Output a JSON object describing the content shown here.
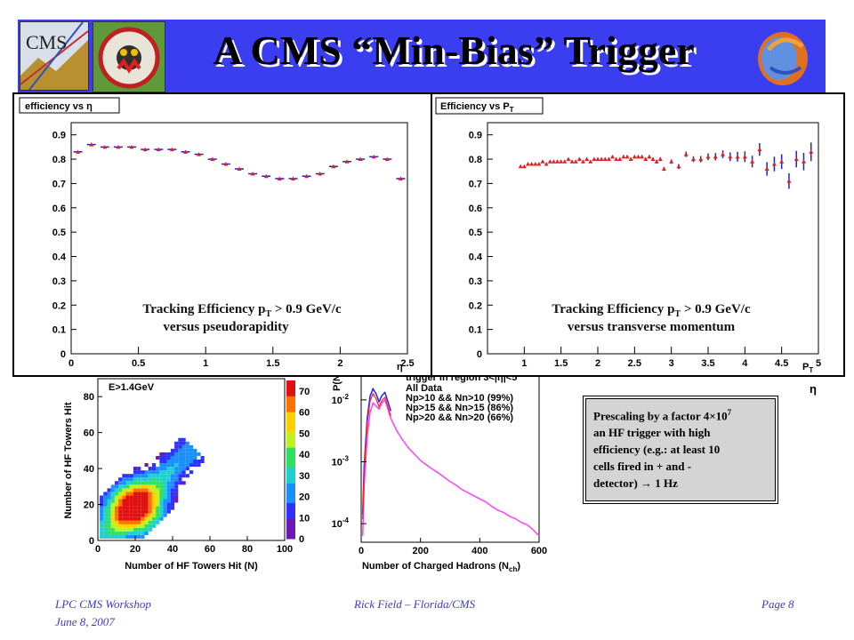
{
  "slide": {
    "title": "A CMS “Min-Bias” Trigger",
    "footer_left_1": "LPC CMS Workshop",
    "footer_left_2": "June 8, 2007",
    "footer_center": "Rick Field – Florida/CMS",
    "footer_right": "Page 8",
    "logos": {
      "cms_text": "CMS"
    },
    "colors": {
      "title_bar": "#3a3df0",
      "marker_red": "#e02020",
      "marker_blue": "#2020d0",
      "magenta": "#ff40ff"
    }
  },
  "prescale_note": {
    "line1": "Prescaling by a factor 4×10",
    "exponent": "7",
    "line2": "an HF trigger with high",
    "line3": "efficiency (e.g.: at least 10",
    "line4": "cells fired in + and -",
    "line5": "detector) → 1 Hz"
  },
  "behind_eta_label": "η",
  "chart_data": [
    {
      "type": "scatter",
      "title": "efficiency vs η",
      "xlabel": "η",
      "ylabel": "",
      "xlim": [
        0,
        2.5
      ],
      "ylim": [
        0,
        0.95
      ],
      "xticks": [
        "0",
        "0.5",
        "1",
        "1.5",
        "2",
        "2.5"
      ],
      "yticks": [
        "0",
        "0.1",
        "0.2",
        "0.3",
        "0.4",
        "0.5",
        "0.6",
        "0.7",
        "0.8",
        "0.9"
      ],
      "caption_line1": "Tracking Efficiency p",
      "caption_sub": "T",
      "caption_rest": " > 0.9 GeV/c",
      "caption_line2": "versus pseudorapidity",
      "x": [
        0.05,
        0.15,
        0.25,
        0.35,
        0.45,
        0.55,
        0.65,
        0.75,
        0.85,
        0.95,
        1.05,
        1.15,
        1.25,
        1.35,
        1.45,
        1.55,
        1.65,
        1.75,
        1.85,
        1.95,
        2.05,
        2.15,
        2.25,
        2.35,
        2.45
      ],
      "y": [
        0.83,
        0.86,
        0.85,
        0.85,
        0.85,
        0.84,
        0.84,
        0.84,
        0.83,
        0.82,
        0.8,
        0.78,
        0.76,
        0.74,
        0.73,
        0.72,
        0.72,
        0.73,
        0.74,
        0.77,
        0.79,
        0.8,
        0.81,
        0.8,
        0.72
      ]
    },
    {
      "type": "scatter",
      "title": "Efficiency vs P",
      "title_sub": "T",
      "xlabel": "P",
      "xlabel_sub": "T",
      "ylabel": "",
      "xlim": [
        0.5,
        5
      ],
      "ylim": [
        0,
        0.95
      ],
      "xticks": [
        "1",
        "1.5",
        "2",
        "2.5",
        "3",
        "3.5",
        "4",
        "4.5",
        "5"
      ],
      "yticks": [
        "0",
        "0.1",
        "0.2",
        "0.3",
        "0.4",
        "0.5",
        "0.6",
        "0.7",
        "0.8",
        "0.9"
      ],
      "caption_line1": "Tracking Efficiency p",
      "caption_sub": "T",
      "caption_rest": " > 0.9 GeV/c",
      "caption_line2": "versus transverse momentum",
      "x": [
        0.95,
        1.0,
        1.05,
        1.1,
        1.15,
        1.2,
        1.25,
        1.3,
        1.35,
        1.4,
        1.45,
        1.5,
        1.55,
        1.6,
        1.65,
        1.7,
        1.75,
        1.8,
        1.85,
        1.9,
        1.95,
        2.0,
        2.05,
        2.1,
        2.15,
        2.2,
        2.25,
        2.3,
        2.35,
        2.4,
        2.45,
        2.5,
        2.55,
        2.6,
        2.65,
        2.7,
        2.75,
        2.8,
        2.85,
        2.9,
        3.0,
        3.1,
        3.2,
        3.3,
        3.4,
        3.5,
        3.6,
        3.7,
        3.8,
        3.9,
        4.0,
        4.1,
        4.2,
        4.3,
        4.4,
        4.5,
        4.6,
        4.7,
        4.8,
        4.9
      ],
      "y": [
        0.77,
        0.77,
        0.78,
        0.78,
        0.78,
        0.78,
        0.79,
        0.78,
        0.79,
        0.79,
        0.79,
        0.79,
        0.79,
        0.8,
        0.79,
        0.79,
        0.8,
        0.79,
        0.8,
        0.79,
        0.8,
        0.8,
        0.8,
        0.8,
        0.8,
        0.81,
        0.8,
        0.8,
        0.81,
        0.81,
        0.8,
        0.81,
        0.81,
        0.81,
        0.8,
        0.81,
        0.8,
        0.79,
        0.8,
        0.76,
        0.79,
        0.77,
        0.82,
        0.8,
        0.8,
        0.81,
        0.81,
        0.82,
        0.81,
        0.81,
        0.81,
        0.79,
        0.84,
        0.76,
        0.78,
        0.79,
        0.71,
        0.8,
        0.79,
        0.83
      ],
      "yerr": [
        0.004,
        0.004,
        0.004,
        0.004,
        0.004,
        0.004,
        0.004,
        0.004,
        0.004,
        0.004,
        0.004,
        0.004,
        0.004,
        0.004,
        0.004,
        0.004,
        0.004,
        0.004,
        0.004,
        0.004,
        0.005,
        0.005,
        0.005,
        0.005,
        0.005,
        0.005,
        0.005,
        0.005,
        0.006,
        0.006,
        0.006,
        0.006,
        0.006,
        0.007,
        0.007,
        0.007,
        0.007,
        0.008,
        0.008,
        0.008,
        0.009,
        0.01,
        0.011,
        0.012,
        0.013,
        0.014,
        0.015,
        0.016,
        0.018,
        0.02,
        0.022,
        0.024,
        0.026,
        0.028,
        0.03,
        0.03,
        0.032,
        0.034,
        0.036,
        0.038
      ]
    },
    {
      "type": "heatmap",
      "title": "",
      "legend_text": "E>1.4GeV",
      "xlabel": "Number of HF Towers Hit (N)",
      "ylabel": "Number of HF Towers Hit",
      "xlim": [
        0,
        100
      ],
      "ylim": [
        0,
        90
      ],
      "xticks": [
        "0",
        "20",
        "40",
        "60",
        "80",
        "100"
      ],
      "yticks": [
        "0",
        "20",
        "40",
        "60",
        "80"
      ],
      "colorbar_ticks": [
        "0",
        "10",
        "20",
        "30",
        "40",
        "50",
        "60",
        "70"
      ],
      "peak": {
        "x": 20,
        "y": 18
      },
      "spread_max": {
        "x": 52,
        "y": 52
      }
    },
    {
      "type": "line",
      "title": "",
      "legend_header": "trigger in region 3<|η|<5",
      "xlabel": "Number of Charged Hadrons (N",
      "xlabel_sub": "ch",
      "xlabel_tail": ")",
      "ylabel": "P(N",
      "xlim": [
        0,
        600
      ],
      "ylim_log": [
        -4.3,
        -1.6
      ],
      "xticks": [
        "0",
        "200",
        "400",
        "600"
      ],
      "yticks": [
        "10",
        "10",
        "10"
      ],
      "ytick_exp": [
        "-2",
        "-3",
        "-4"
      ],
      "series": [
        {
          "name": "All Data",
          "color": "#000000"
        },
        {
          "name": "Np>10 && Nn>10 (99%)",
          "color": "#2020ff"
        },
        {
          "name": "Np>15 && Nn>15 (86%)",
          "color": "#ff2020"
        },
        {
          "name": "Np>20 && Nn>20 (66%)",
          "color": "#ff40ff"
        }
      ],
      "x": [
        5,
        10,
        20,
        30,
        40,
        50,
        60,
        70,
        80,
        90,
        100,
        120,
        140,
        160,
        180,
        200,
        220,
        240,
        260,
        280,
        300,
        320,
        340,
        360,
        380,
        400,
        420,
        440,
        460,
        480,
        500,
        520,
        540,
        560,
        580,
        600
      ],
      "magenta_log": [
        -4.2,
        -3.4,
        -2.6,
        -2.2,
        -2.05,
        -2.1,
        -2.15,
        -2.05,
        -2.0,
        -2.15,
        -2.3,
        -2.5,
        -2.65,
        -2.78,
        -2.88,
        -2.98,
        -3.05,
        -3.12,
        -3.18,
        -3.25,
        -3.32,
        -3.38,
        -3.45,
        -3.5,
        -3.55,
        -3.6,
        -3.65,
        -3.72,
        -3.78,
        -3.82,
        -3.88,
        -3.92,
        -3.98,
        -4.02,
        -4.1,
        -4.2
      ]
    }
  ]
}
